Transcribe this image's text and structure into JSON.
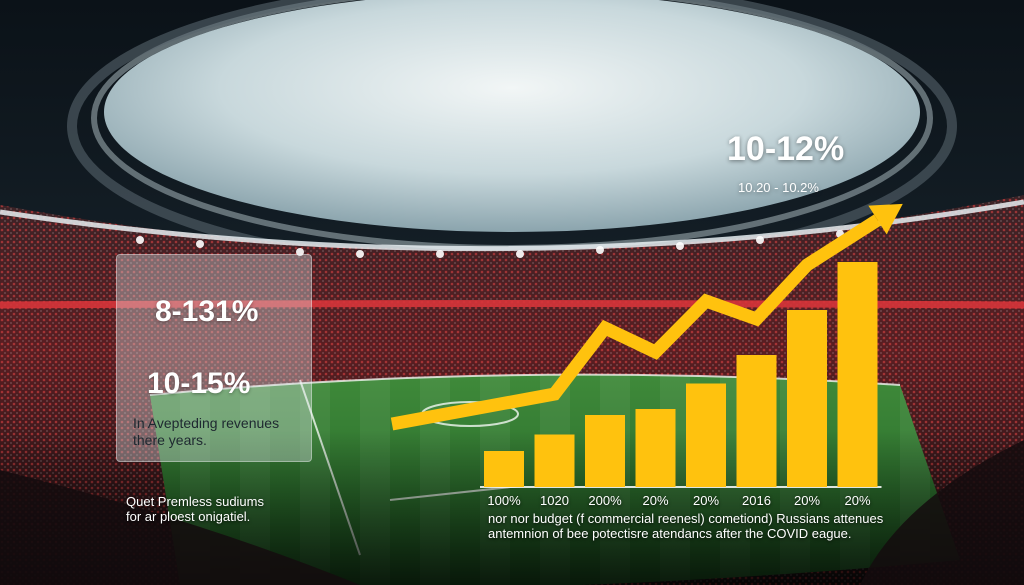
{
  "overlay": {
    "stat_top": "10-12%",
    "stat_top_sub": "10.20 - 10.2%",
    "stat_box_1": "8-131%",
    "stat_box_2": "10-15%",
    "box_description": "In Avepteding revenues there years.",
    "caption_left_1": "Quet Premless sudiums",
    "caption_left_2": "for ar ploest onigatiel.",
    "caption_right_1": "nor nor budget (f commercial reenesl) cometiond) Russians attenues",
    "caption_right_2": "antemnion of bee potectisre atendancs after the COVID eague."
  },
  "chart_data": {
    "type": "bar",
    "categories": [
      "100%",
      "1020",
      "200%",
      "20%",
      "20%",
      "2016",
      "20%",
      "20%"
    ],
    "values": [
      1.2,
      1.75,
      2.4,
      2.6,
      3.45,
      4.4,
      5.9,
      7.5
    ],
    "ylim": [
      0,
      8
    ],
    "trend_line": [
      1.6,
      2.6,
      4.8,
      4.0,
      5.7,
      5.1,
      6.9,
      8.4
    ],
    "colors": {
      "bars": "#ffc20e",
      "trend": "#ffc20e"
    }
  }
}
